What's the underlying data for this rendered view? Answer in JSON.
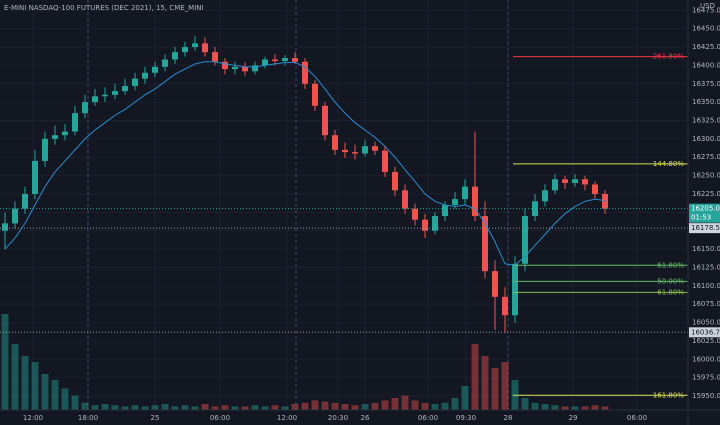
{
  "header": {
    "title": "E-MINI NASDAQ-100 FUTURES (DEC 2021), 15, CME_MINI",
    "currency": "USD"
  },
  "chart_data": {
    "type": "candlestick",
    "up_color": "#26a69a",
    "down_color": "#ef5350",
    "ma_color": "#2a8ccf",
    "grid": true,
    "open": [
      16175,
      16185,
      16205,
      16225,
      16270,
      16300,
      16305,
      16310,
      16335,
      16350,
      16358,
      16360,
      16365,
      16372,
      16382,
      16390,
      16398,
      16408,
      16418,
      16425,
      16430,
      16418,
      16405,
      16395,
      16398,
      16392,
      16400,
      16408,
      16406,
      16410,
      16405,
      16375,
      16345,
      16305,
      16285,
      16282,
      16280,
      16290,
      16284,
      16255,
      16230,
      16205,
      16190,
      16175,
      16195,
      16210,
      16218,
      16235,
      16195,
      16120,
      16085,
      16060,
      16130,
      16195,
      16215,
      16230,
      16245,
      16240,
      16245,
      16238,
      16225
    ],
    "high": [
      16200,
      16215,
      16235,
      16285,
      16310,
      16318,
      16320,
      16345,
      16360,
      16368,
      16370,
      16375,
      16382,
      16390,
      16398,
      16405,
      16415,
      16425,
      16432,
      16440,
      16438,
      16425,
      16410,
      16405,
      16404,
      16405,
      16412,
      16415,
      16414,
      16418,
      16410,
      16380,
      16350,
      16312,
      16295,
      16292,
      16298,
      16296,
      16290,
      16262,
      16238,
      16212,
      16198,
      16200,
      16215,
      16228,
      16245,
      16310,
      16215,
      16135,
      16098,
      16140,
      16205,
      16225,
      16238,
      16252,
      16250,
      16252,
      16250,
      16242,
      16230
    ],
    "low": [
      16150,
      16178,
      16198,
      16218,
      16262,
      16292,
      16298,
      16305,
      16328,
      16345,
      16350,
      16354,
      16360,
      16366,
      16375,
      16384,
      16392,
      16402,
      16412,
      16420,
      16412,
      16400,
      16388,
      16388,
      16386,
      16388,
      16396,
      16400,
      16400,
      16402,
      16368,
      16338,
      16298,
      16278,
      16274,
      16272,
      16276,
      16278,
      16248,
      16222,
      16198,
      16182,
      16165,
      16170,
      16188,
      16205,
      16210,
      16188,
      16110,
      16040,
      16036,
      16050,
      16120,
      16188,
      16208,
      16225,
      16232,
      16235,
      16230,
      16218,
      16198
    ],
    "close": [
      16185,
      16205,
      16225,
      16270,
      16300,
      16305,
      16310,
      16335,
      16350,
      16358,
      16360,
      16365,
      16372,
      16382,
      16390,
      16398,
      16408,
      16418,
      16425,
      16430,
      16418,
      16405,
      16395,
      16398,
      16392,
      16400,
      16408,
      16406,
      16410,
      16405,
      16375,
      16345,
      16305,
      16285,
      16282,
      16280,
      16290,
      16284,
      16255,
      16230,
      16205,
      16190,
      16175,
      16195,
      16210,
      16218,
      16235,
      16195,
      16120,
      16085,
      16060,
      16130,
      16195,
      16215,
      16230,
      16245,
      16240,
      16245,
      16238,
      16225,
      16205
    ],
    "ma": [
      16150,
      16165,
      16185,
      16210,
      16235,
      16255,
      16270,
      16285,
      16300,
      16312,
      16322,
      16332,
      16340,
      16350,
      16360,
      16368,
      16378,
      16388,
      16395,
      16402,
      16405,
      16405,
      16402,
      16400,
      16398,
      16398,
      16400,
      16402,
      16404,
      16404,
      16398,
      16385,
      16368,
      16350,
      16335,
      16322,
      16312,
      16302,
      16290,
      16275,
      16258,
      16242,
      16225,
      16215,
      16210,
      16208,
      16210,
      16205,
      16185,
      16160,
      16130,
      16128,
      16140,
      16155,
      16170,
      16185,
      16198,
      16208,
      16215,
      16218,
      16216
    ],
    "volume": [
      80,
      55,
      45,
      40,
      30,
      25,
      18,
      12,
      6,
      4,
      5,
      4,
      3,
      4,
      3,
      4,
      5,
      3,
      4,
      3,
      5,
      3,
      4,
      3,
      3,
      4,
      3,
      4,
      3,
      5,
      6,
      8,
      7,
      6,
      5,
      4,
      5,
      6,
      8,
      10,
      12,
      8,
      6,
      5,
      6,
      10,
      20,
      55,
      45,
      35,
      40,
      25,
      10,
      6,
      5,
      4,
      3,
      3,
      3,
      4,
      3
    ],
    "vlim": [
      0,
      100
    ],
    "xlim": [
      0,
      68.8
    ],
    "xticks": [
      {
        "value": 3.3,
        "label": "12:00"
      },
      {
        "value": 8.8,
        "label": "18:00"
      },
      {
        "value": 15.5,
        "label": "25"
      },
      {
        "value": 22,
        "label": "06:00"
      },
      {
        "value": 28.7,
        "label": "12:00"
      },
      {
        "value": 33.8,
        "label": "20:30"
      },
      {
        "value": 36.5,
        "label": "26"
      },
      {
        "value": 42.8,
        "label": "06:00"
      },
      {
        "value": 46.6,
        "label": "09:30"
      },
      {
        "value": 50.8,
        "label": "28"
      },
      {
        "value": 57.3,
        "label": "29"
      },
      {
        "value": 63.7,
        "label": "06:00"
      }
    ],
    "ylim": [
      15931,
      16489
    ],
    "yticks": [
      {
        "value": 16475,
        "label": "16475.00"
      },
      {
        "value": 16450,
        "label": "16450.00"
      },
      {
        "value": 16425,
        "label": "16425.00"
      },
      {
        "value": 16400,
        "label": "16400.00"
      },
      {
        "value": 16375,
        "label": "16375.00"
      },
      {
        "value": 16350,
        "label": "16350.00"
      },
      {
        "value": 16325,
        "label": "16325.00"
      },
      {
        "value": 16300,
        "label": "16300.00"
      },
      {
        "value": 16275,
        "label": "16275.00"
      },
      {
        "value": 16250,
        "label": "16250.00"
      },
      {
        "value": 16225,
        "label": "16225.00"
      },
      {
        "value": 16200,
        "label": "16200.00"
      },
      {
        "value": 16175,
        "label": "16175.00"
      },
      {
        "value": 16150,
        "label": "16150.00"
      },
      {
        "value": 16125,
        "label": "16125.00"
      },
      {
        "value": 16100,
        "label": "16100.00"
      },
      {
        "value": 16075,
        "label": "16075.00"
      },
      {
        "value": 16050,
        "label": "16050.00"
      },
      {
        "value": 16025,
        "label": "16025.00"
      },
      {
        "value": 16000,
        "label": "16000.00"
      },
      {
        "value": 15975,
        "label": "15975.00"
      },
      {
        "value": 15950,
        "label": "15950.00"
      }
    ],
    "fib_levels": [
      {
        "value": 16412,
        "label": "261.80%",
        "color": "#f23645"
      },
      {
        "value": 16266,
        "label": "144.80%",
        "color": "#d4e157"
      },
      {
        "value": 16128,
        "label": "61.80%",
        "color": "#66bb6a"
      },
      {
        "value": 16106,
        "label": "50.00%",
        "color": "#66bb6a"
      },
      {
        "value": 16091,
        "label": "61.80%",
        "color": "#8bc34a"
      },
      {
        "value": 15951,
        "label": "161.80%",
        "color": "#d4e157"
      }
    ],
    "price_lines": [
      {
        "value": 16178.5,
        "label": "16178.50"
      },
      {
        "value": 16036.75,
        "label": "16036.75"
      }
    ],
    "last_price": {
      "value": 16205,
      "label": "16205.00",
      "countdown": "01:53",
      "color": "#26a69a"
    }
  }
}
